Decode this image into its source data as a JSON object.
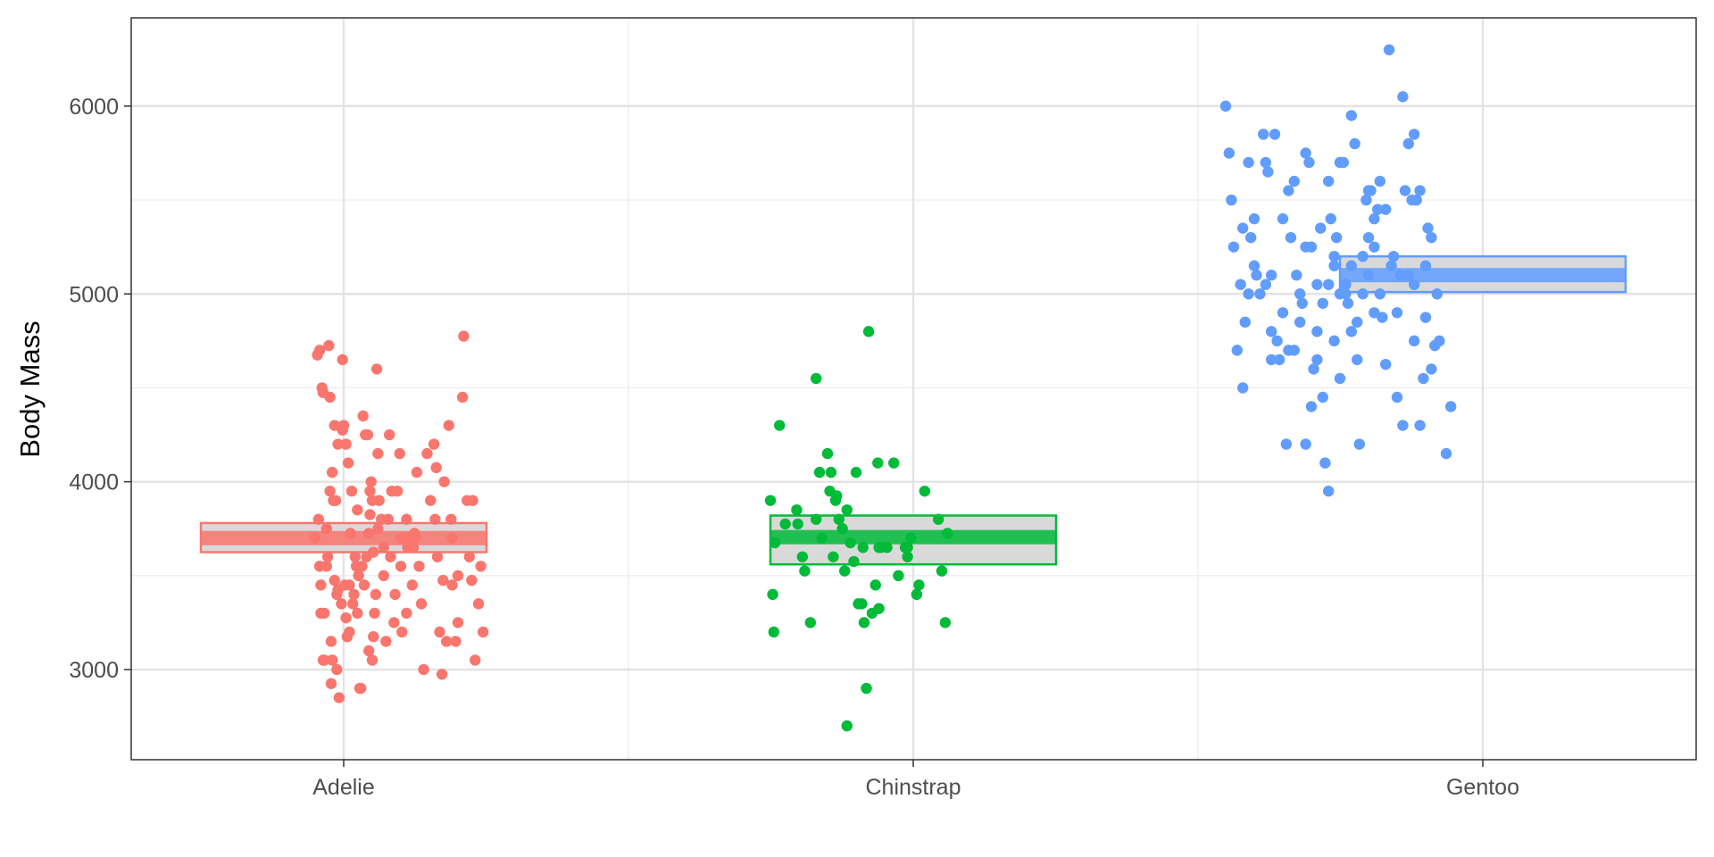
{
  "chart_data": {
    "type": "scatter",
    "title": "",
    "xlabel": "",
    "ylabel": "Body Mass",
    "categories": [
      "Adelie",
      "Chinstrap",
      "Gentoo"
    ],
    "ylim": [
      2520,
      6470
    ],
    "y_ticks": [
      3000,
      4000,
      5000,
      6000
    ],
    "grid": true,
    "legend": "none",
    "series": [
      {
        "category": "Adelie",
        "color": "#F8766D",
        "mean": 3700,
        "ci_low": 3625,
        "ci_high": 3780,
        "points": [
          [
            -0.25,
            3700
          ],
          [
            -0.23,
            4675
          ],
          [
            -0.21,
            4700
          ],
          [
            -0.2,
            3300
          ],
          [
            -0.21,
            3550
          ],
          [
            -0.22,
            3800
          ],
          [
            -0.19,
            4500
          ],
          [
            -0.18,
            4475
          ],
          [
            -0.17,
            3300
          ],
          [
            -0.18,
            3050
          ],
          [
            -0.15,
            3750
          ],
          [
            -0.17,
            3050
          ],
          [
            -0.15,
            3550
          ],
          [
            -0.13,
            4725
          ],
          [
            -0.12,
            4450
          ],
          [
            -0.12,
            3950
          ],
          [
            -0.11,
            3150
          ],
          [
            -0.11,
            2925
          ],
          [
            -0.09,
            3900
          ],
          [
            -0.1,
            4050
          ],
          [
            -0.1,
            3050
          ],
          [
            -0.08,
            4300
          ],
          [
            -0.07,
            3900
          ],
          [
            -0.08,
            3475
          ],
          [
            -0.06,
            3400
          ],
          [
            -0.05,
            3425
          ],
          [
            -0.06,
            3000
          ],
          [
            -0.04,
            2850
          ],
          [
            -0.02,
            3350
          ],
          [
            -0.01,
            4275
          ],
          [
            -0.01,
            4650
          ],
          [
            0.01,
            3450
          ],
          [
            0.02,
            4200
          ],
          [
            0.0,
            4300
          ],
          [
            0.02,
            3275
          ],
          [
            0.03,
            3175
          ],
          [
            0.04,
            4100
          ],
          [
            0.06,
            3725
          ],
          [
            0.07,
            3950
          ],
          [
            0.05,
            3450
          ],
          [
            0.08,
            3350
          ],
          [
            0.09,
            3400
          ],
          [
            0.1,
            3600
          ],
          [
            0.11,
            3550
          ],
          [
            0.12,
            3300
          ],
          [
            0.13,
            3500
          ],
          [
            0.14,
            2900
          ],
          [
            0.15,
            2900
          ],
          [
            0.16,
            3550
          ],
          [
            0.17,
            4350
          ],
          [
            0.18,
            3450
          ],
          [
            0.19,
            4250
          ],
          [
            0.2,
            3600
          ],
          [
            0.21,
            4250
          ],
          [
            0.22,
            3100
          ],
          [
            0.22,
            3725
          ],
          [
            0.23,
            3825
          ],
          [
            0.23,
            3950
          ],
          [
            0.24,
            4000
          ],
          [
            0.25,
            3900
          ],
          [
            0.26,
            3625
          ],
          [
            0.27,
            3300
          ],
          [
            0.26,
            3175
          ],
          [
            0.28,
            3400
          ],
          [
            0.29,
            4600
          ],
          [
            0.3,
            3750
          ],
          [
            0.31,
            3900
          ],
          [
            0.33,
            3800
          ],
          [
            0.35,
            3500
          ],
          [
            0.37,
            3150
          ],
          [
            0.39,
            3800
          ],
          [
            0.4,
            4250
          ],
          [
            0.41,
            3600
          ],
          [
            0.44,
            3250
          ],
          [
            0.47,
            3950
          ],
          [
            0.49,
            4150
          ],
          [
            0.5,
            3550
          ],
          [
            0.51,
            3200
          ],
          [
            0.53,
            3700
          ],
          [
            0.55,
            3800
          ],
          [
            0.56,
            3650
          ],
          [
            0.57,
            3700
          ],
          [
            0.6,
            3450
          ],
          [
            0.63,
            3700
          ],
          [
            0.64,
            4050
          ],
          [
            0.66,
            3550
          ],
          [
            0.73,
            4150
          ],
          [
            0.76,
            3900
          ],
          [
            0.79,
            4200
          ],
          [
            0.81,
            4075
          ],
          [
            0.82,
            3600
          ],
          [
            0.84,
            3200
          ],
          [
            0.86,
            2975
          ],
          [
            0.87,
            3475
          ],
          [
            0.9,
            3150
          ],
          [
            0.92,
            4300
          ],
          [
            0.94,
            3800
          ],
          [
            0.95,
            3450
          ],
          [
            0.98,
            3150
          ],
          [
            1.0,
            3500
          ],
          [
            1.04,
            4450
          ],
          [
            1.05,
            4775
          ],
          [
            1.08,
            3900
          ],
          [
            1.12,
            3475
          ],
          [
            1.13,
            3900
          ],
          [
            1.15,
            3050
          ],
          [
            1.18,
            3350
          ],
          [
            1.2,
            3550
          ],
          [
            1.22,
            3200
          ],
          [
            0.62,
            3725
          ],
          [
            0.61,
            3650
          ],
          [
            0.5,
            3700
          ],
          [
            0.35,
            3650
          ],
          [
            0.05,
            3200
          ],
          [
            -0.14,
            3600
          ],
          [
            0.45,
            3400
          ],
          [
            0.7,
            3000
          ],
          [
            0.95,
            3700
          ],
          [
            -0.05,
            4200
          ],
          [
            0.3,
            4150
          ],
          [
            0.55,
            3300
          ],
          [
            0.8,
            3800
          ],
          [
            1.1,
            3600
          ],
          [
            0.12,
            3850
          ],
          [
            0.68,
            3350
          ],
          [
            -0.2,
            3450
          ],
          [
            0.42,
            3950
          ],
          [
            0.88,
            4000
          ],
          [
            1.0,
            3250
          ],
          [
            0.25,
            3050
          ]
        ]
      },
      {
        "category": "Chinstrap",
        "color": "#00BA38",
        "mean": 3705,
        "ci_low": 3560,
        "ci_high": 3820,
        "points": [
          [
            -1.25,
            3900
          ],
          [
            -1.23,
            3400
          ],
          [
            -1.22,
            3200
          ],
          [
            -1.21,
            3675
          ],
          [
            -1.17,
            4300
          ],
          [
            -1.12,
            3775
          ],
          [
            -1.02,
            3850
          ],
          [
            -1.01,
            3775
          ],
          [
            -0.97,
            3600
          ],
          [
            -0.95,
            3525
          ],
          [
            -0.9,
            3250
          ],
          [
            -0.85,
            4550
          ],
          [
            -0.82,
            4050
          ],
          [
            -0.8,
            3700
          ],
          [
            -0.75,
            4150
          ],
          [
            -0.72,
            4050
          ],
          [
            -0.73,
            3950
          ],
          [
            -0.68,
            3900
          ],
          [
            -0.67,
            3925
          ],
          [
            -0.65,
            3800
          ],
          [
            -0.62,
            3750
          ],
          [
            -0.6,
            3525
          ],
          [
            -0.58,
            2700
          ],
          [
            -0.55,
            3675
          ],
          [
            -0.52,
            3575
          ],
          [
            -0.5,
            4050
          ],
          [
            -0.48,
            3350
          ],
          [
            -0.45,
            3350
          ],
          [
            -0.43,
            3250
          ],
          [
            -0.41,
            2900
          ],
          [
            -0.39,
            4800
          ],
          [
            -0.36,
            3300
          ],
          [
            -0.33,
            3450
          ],
          [
            -0.31,
            4100
          ],
          [
            -0.3,
            3650
          ],
          [
            -0.28,
            3650
          ],
          [
            -0.23,
            3650
          ],
          [
            -0.17,
            4100
          ],
          [
            -0.13,
            3500
          ],
          [
            -0.07,
            3650
          ],
          [
            -0.05,
            3600
          ],
          [
            -0.02,
            3700
          ],
          [
            0.03,
            3400
          ],
          [
            0.05,
            3450
          ],
          [
            0.1,
            3950
          ],
          [
            0.22,
            3800
          ],
          [
            0.25,
            3525
          ],
          [
            0.28,
            3250
          ],
          [
            0.3,
            3725
          ],
          [
            -0.85,
            3800
          ],
          [
            -0.44,
            3650
          ],
          [
            -0.05,
            3650
          ],
          [
            -0.3,
            3325
          ],
          [
            -0.58,
            3850
          ],
          [
            -0.7,
            3600
          ]
        ]
      },
      {
        "category": "Gentoo",
        "color": "#619CFF",
        "mean": 5100,
        "ci_low": 5010,
        "ci_high": 5200,
        "points": [
          [
            -2.25,
            6000
          ],
          [
            -2.22,
            5750
          ],
          [
            -2.2,
            5500
          ],
          [
            -2.18,
            5250
          ],
          [
            -2.15,
            4700
          ],
          [
            -2.12,
            5050
          ],
          [
            -2.1,
            4500
          ],
          [
            -2.08,
            4850
          ],
          [
            -2.05,
            5700
          ],
          [
            -2.03,
            5300
          ],
          [
            -2.0,
            5400
          ],
          [
            -1.95,
            5000
          ],
          [
            -1.92,
            5850
          ],
          [
            -1.9,
            5700
          ],
          [
            -1.88,
            5650
          ],
          [
            -1.85,
            4650
          ],
          [
            -1.82,
            5850
          ],
          [
            -1.8,
            4750
          ],
          [
            -1.78,
            4650
          ],
          [
            -1.75,
            5400
          ],
          [
            -1.72,
            4200
          ],
          [
            -1.7,
            4700
          ],
          [
            -1.68,
            5300
          ],
          [
            -1.65,
            4700
          ],
          [
            -1.63,
            5100
          ],
          [
            -1.6,
            5000
          ],
          [
            -1.58,
            4950
          ],
          [
            -1.55,
            4200
          ],
          [
            -1.52,
            5700
          ],
          [
            -1.5,
            5250
          ],
          [
            -1.48,
            4600
          ],
          [
            -1.45,
            4650
          ],
          [
            -1.42,
            5350
          ],
          [
            -1.4,
            4450
          ],
          [
            -1.38,
            4100
          ],
          [
            -1.35,
            5600
          ],
          [
            -1.33,
            5400
          ],
          [
            -1.3,
            5200
          ],
          [
            -1.28,
            5300
          ],
          [
            -1.25,
            5700
          ],
          [
            -1.22,
            5700
          ],
          [
            -1.2,
            5000
          ],
          [
            -1.18,
            4950
          ],
          [
            -1.15,
            5950
          ],
          [
            -1.12,
            5800
          ],
          [
            -1.1,
            4850
          ],
          [
            -1.08,
            4200
          ],
          [
            -1.05,
            5200
          ],
          [
            -1.02,
            5500
          ],
          [
            -1.0,
            5550
          ],
          [
            -0.98,
            5550
          ],
          [
            -0.95,
            5400
          ],
          [
            -0.92,
            5450
          ],
          [
            -0.9,
            5600
          ],
          [
            -0.88,
            4875
          ],
          [
            -0.82,
            6300
          ],
          [
            -0.78,
            5200
          ],
          [
            -0.75,
            4450
          ],
          [
            -0.72,
            5100
          ],
          [
            -0.7,
            6050
          ],
          [
            -0.68,
            5550
          ],
          [
            -0.65,
            5800
          ],
          [
            -0.62,
            5500
          ],
          [
            -0.6,
            5850
          ],
          [
            -0.58,
            5500
          ],
          [
            -0.55,
            5550
          ],
          [
            -0.52,
            4550
          ],
          [
            -0.5,
            4875
          ],
          [
            -0.48,
            5350
          ],
          [
            -0.45,
            5300
          ],
          [
            -0.42,
            4725
          ],
          [
            -0.38,
            4750
          ],
          [
            -0.32,
            4150
          ],
          [
            -0.28,
            4400
          ],
          [
            -1.6,
            4850
          ],
          [
            -1.35,
            3950
          ],
          [
            -1.25,
            5000
          ],
          [
            -1.15,
            4800
          ],
          [
            -1.05,
            5000
          ],
          [
            -0.95,
            4900
          ],
          [
            -0.85,
            4625
          ],
          [
            -0.7,
            4300
          ],
          [
            -0.55,
            4300
          ],
          [
            -0.4,
            5000
          ],
          [
            -1.45,
            4800
          ],
          [
            -1.98,
            5100
          ],
          [
            -1.85,
            5100
          ],
          [
            -1.55,
            5250
          ],
          [
            -1.3,
            5150
          ],
          [
            -1.0,
            5100
          ],
          [
            -0.8,
            5150
          ],
          [
            -0.6,
            5050
          ],
          [
            -2.05,
            5000
          ],
          [
            -1.75,
            4900
          ],
          [
            -1.4,
            4950
          ],
          [
            -1.2,
            5050
          ],
          [
            -0.9,
            5000
          ],
          [
            -0.65,
            5100
          ],
          [
            -1.65,
            5600
          ],
          [
            -1.0,
            5300
          ],
          [
            -0.5,
            5150
          ],
          [
            -1.9,
            5050
          ],
          [
            -1.5,
            4400
          ],
          [
            -1.1,
            4650
          ],
          [
            -0.75,
            4900
          ],
          [
            -2.1,
            5350
          ],
          [
            -1.7,
            5550
          ],
          [
            -1.3,
            4750
          ],
          [
            -0.95,
            5250
          ],
          [
            -0.85,
            5450
          ],
          [
            -1.45,
            5050
          ],
          [
            -1.55,
            5750
          ],
          [
            -1.25,
            4550
          ],
          [
            -1.85,
            4800
          ],
          [
            -2.0,
            5150
          ],
          [
            -0.6,
            4750
          ],
          [
            -0.45,
            4600
          ],
          [
            -1.15,
            5150
          ],
          [
            -1.35,
            5050
          ]
        ]
      }
    ]
  }
}
